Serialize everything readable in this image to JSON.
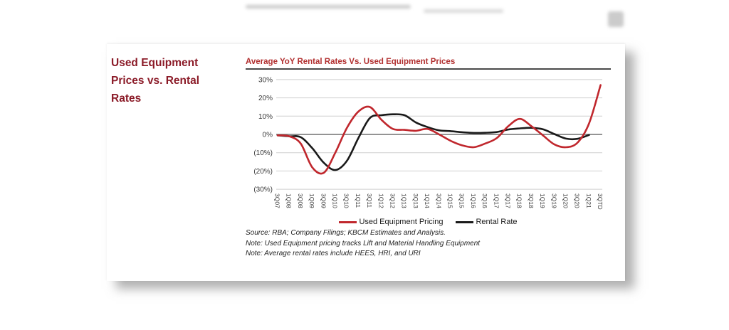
{
  "page": {
    "sidebar_title": "Used Equipment Prices vs. Rental Rates"
  },
  "chart_data": {
    "type": "line",
    "title": "Average YoY Rental Rates Vs. Used Equipment Prices",
    "categories": [
      "3Q07",
      "1Q08",
      "3Q08",
      "1Q09",
      "3Q09",
      "1Q10",
      "3Q10",
      "1Q11",
      "3Q11",
      "1Q12",
      "3Q12",
      "1Q13",
      "3Q13",
      "1Q14",
      "3Q14",
      "1Q15",
      "3Q15",
      "1Q16",
      "3Q16",
      "1Q17",
      "3Q17",
      "1Q18",
      "3Q18",
      "1Q19",
      "3Q19",
      "1Q20",
      "3Q20",
      "1Q21",
      "3QTD"
    ],
    "series": [
      {
        "name": "Used Equipment Pricing",
        "color": "#c0272d",
        "values": [
          -0.5,
          -1,
          -5,
          -18,
          -21,
          -10,
          3.5,
          12.5,
          15,
          8,
          3,
          2.5,
          2,
          3,
          0,
          -3.5,
          -6,
          -7,
          -5,
          -2,
          4.5,
          8.5,
          4.5,
          -0.5,
          -5.5,
          -7,
          -4.5,
          6,
          27
        ]
      },
      {
        "name": "Rental Rate",
        "color": "#1a1a1a",
        "values": [
          -0.5,
          -1,
          -1.5,
          -7.5,
          -15.5,
          -19.5,
          -14.5,
          -2,
          9,
          10.5,
          11,
          10.5,
          6.5,
          4,
          2.2,
          1.8,
          1.2,
          0.8,
          0.9,
          1.3,
          2.7,
          3.3,
          3.6,
          2.8,
          0.2,
          -2.3,
          -2.4,
          -0.3,
          null
        ]
      }
    ],
    "xlabel": "",
    "ylabel": "",
    "ylim": [
      -30,
      30
    ],
    "ytick_values": [
      30,
      20,
      10,
      0,
      -10,
      -20,
      -30
    ],
    "ytick_labels": [
      "30%",
      "20%",
      "10%",
      "0%",
      "(10%)",
      "(20%)",
      "(30%)"
    ],
    "grid": true,
    "zero_line": true,
    "legend_position": "bottom"
  },
  "notes": {
    "source": "Source: RBA; Company Filings; KBCM Estimates and Analysis.",
    "note1": "Note: Used Equipment pricing tracks Lift and Material Handling Equipment",
    "note2": "Note: Average rental rates include HEES, HRI, and URI"
  },
  "colors": {
    "sidebar_title": "#8b1b28",
    "chart_title": "#b23030",
    "used_equipment_line": "#c0272d",
    "rental_line": "#1a1a1a",
    "gridline": "#cfcfcf",
    "zero_line": "#707070",
    "axis_text": "#3a3a3a"
  }
}
